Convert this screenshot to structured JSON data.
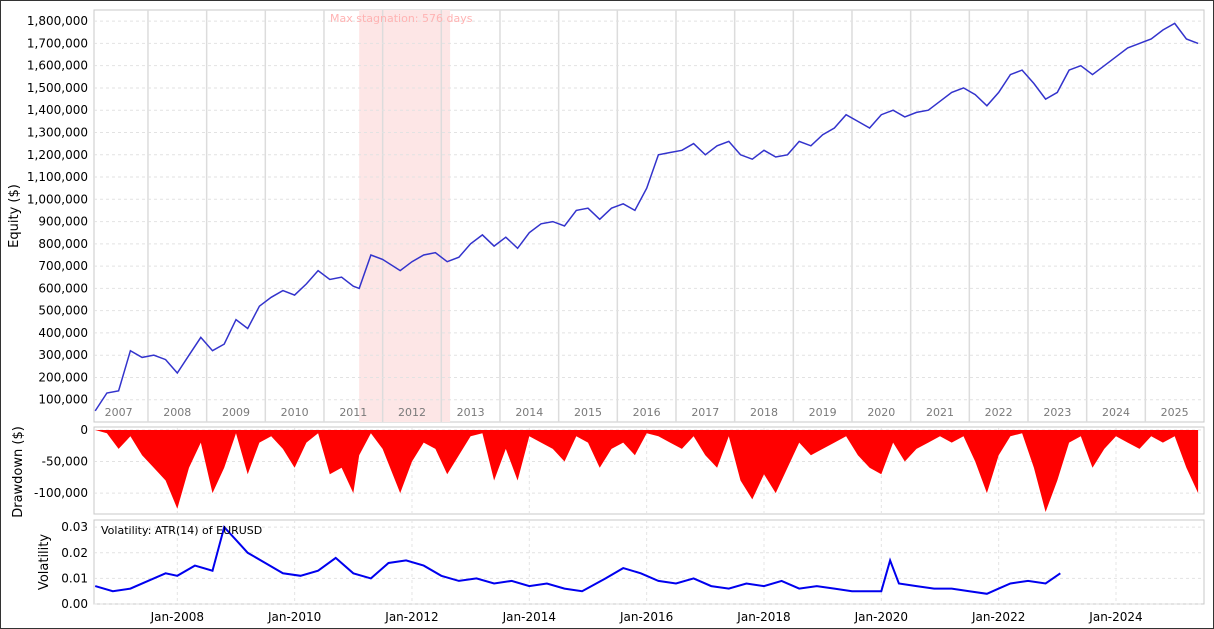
{
  "chart_data": [
    {
      "type": "line",
      "panel": "equity",
      "ylabel": "Equity ($)",
      "ylim": [
        0,
        1850000
      ],
      "yticks": [
        100000,
        200000,
        300000,
        400000,
        500000,
        600000,
        700000,
        800000,
        900000,
        1000000,
        1100000,
        1200000,
        1300000,
        1400000,
        1500000,
        1600000,
        1700000,
        1800000
      ],
      "ytick_labels": [
        "100,000",
        "200,000",
        "300,000",
        "400,000",
        "500,000",
        "600,000",
        "700,000",
        "800,000",
        "900,000",
        "1,000,000",
        "1,100,000",
        "1,200,000",
        "1,300,000",
        "1,400,000",
        "1,500,000",
        "1,600,000",
        "1,700,000",
        "1,800,000"
      ],
      "year_labels": [
        "2007",
        "2008",
        "2009",
        "2010",
        "2011",
        "2012",
        "2013",
        "2014",
        "2015",
        "2016",
        "2017",
        "2018",
        "2019",
        "2020",
        "2021",
        "2022",
        "2023",
        "2024",
        "2025"
      ],
      "annotation": "Max stagnation: 576 days",
      "stagnation_x": [
        2011.1,
        2012.65
      ],
      "grid": true,
      "color": "#3333cc",
      "x": [
        2006.6,
        2006.8,
        2007.0,
        2007.2,
        2007.4,
        2007.6,
        2007.8,
        2008.0,
        2008.2,
        2008.4,
        2008.6,
        2008.8,
        2009.0,
        2009.2,
        2009.4,
        2009.6,
        2009.8,
        2010.0,
        2010.2,
        2010.4,
        2010.6,
        2010.8,
        2011.0,
        2011.1,
        2011.3,
        2011.5,
        2011.8,
        2012.0,
        2012.2,
        2012.4,
        2012.6,
        2012.8,
        2013.0,
        2013.2,
        2013.4,
        2013.6,
        2013.8,
        2014.0,
        2014.2,
        2014.4,
        2014.6,
        2014.8,
        2015.0,
        2015.2,
        2015.4,
        2015.6,
        2015.8,
        2016.0,
        2016.2,
        2016.4,
        2016.6,
        2016.8,
        2017.0,
        2017.2,
        2017.4,
        2017.6,
        2017.8,
        2018.0,
        2018.2,
        2018.4,
        2018.6,
        2018.8,
        2019.0,
        2019.2,
        2019.4,
        2019.6,
        2019.8,
        2020.0,
        2020.2,
        2020.4,
        2020.6,
        2020.8,
        2021.0,
        2021.2,
        2021.4,
        2021.6,
        2021.8,
        2022.0,
        2022.2,
        2022.4,
        2022.6,
        2022.8,
        2023.0,
        2023.2,
        2023.4,
        2023.6,
        2023.8,
        2024.0,
        2024.2,
        2024.4,
        2024.6,
        2024.8,
        2025.0,
        2025.2,
        2025.4
      ],
      "y": [
        50000,
        130000,
        140000,
        320000,
        290000,
        300000,
        280000,
        220000,
        300000,
        380000,
        320000,
        350000,
        460000,
        420000,
        520000,
        560000,
        590000,
        570000,
        620000,
        680000,
        640000,
        650000,
        610000,
        600000,
        750000,
        730000,
        680000,
        720000,
        750000,
        760000,
        720000,
        740000,
        800000,
        840000,
        790000,
        830000,
        780000,
        850000,
        890000,
        900000,
        880000,
        950000,
        960000,
        910000,
        960000,
        980000,
        950000,
        1050000,
        1200000,
        1210000,
        1220000,
        1250000,
        1200000,
        1240000,
        1260000,
        1200000,
        1180000,
        1220000,
        1190000,
        1200000,
        1260000,
        1240000,
        1290000,
        1320000,
        1380000,
        1350000,
        1320000,
        1380000,
        1400000,
        1370000,
        1390000,
        1400000,
        1440000,
        1480000,
        1500000,
        1470000,
        1420000,
        1480000,
        1560000,
        1580000,
        1520000,
        1450000,
        1480000,
        1580000,
        1600000,
        1560000,
        1600000,
        1640000,
        1680000,
        1700000,
        1720000,
        1760000,
        1790000,
        1720000,
        1700000
      ]
    },
    {
      "type": "area",
      "panel": "drawdown",
      "ylabel": "Drawdown ($)",
      "ylim": [
        -130000,
        0
      ],
      "yticks": [
        0,
        -50000,
        -100000
      ],
      "ytick_labels": [
        "0",
        "-50,000",
        "-100,000"
      ],
      "color": "#ff0000",
      "grid": true,
      "x": [
        2006.6,
        2006.8,
        2007.0,
        2007.2,
        2007.4,
        2007.6,
        2007.8,
        2008.0,
        2008.2,
        2008.4,
        2008.6,
        2008.8,
        2009.0,
        2009.2,
        2009.4,
        2009.6,
        2009.8,
        2010.0,
        2010.2,
        2010.4,
        2010.6,
        2010.8,
        2011.0,
        2011.1,
        2011.3,
        2011.5,
        2011.8,
        2012.0,
        2012.2,
        2012.4,
        2012.6,
        2012.8,
        2013.0,
        2013.2,
        2013.4,
        2013.6,
        2013.8,
        2014.0,
        2014.2,
        2014.4,
        2014.6,
        2014.8,
        2015.0,
        2015.2,
        2015.4,
        2015.6,
        2015.8,
        2016.0,
        2016.2,
        2016.4,
        2016.6,
        2016.8,
        2017.0,
        2017.2,
        2017.4,
        2017.6,
        2017.8,
        2018.0,
        2018.2,
        2018.4,
        2018.6,
        2018.8,
        2019.0,
        2019.2,
        2019.4,
        2019.6,
        2019.8,
        2020.0,
        2020.2,
        2020.4,
        2020.6,
        2020.8,
        2021.0,
        2021.2,
        2021.4,
        2021.6,
        2021.8,
        2022.0,
        2022.2,
        2022.4,
        2022.6,
        2022.8,
        2023.0,
        2023.2,
        2023.4,
        2023.6,
        2023.8,
        2024.0,
        2024.2,
        2024.4,
        2024.6,
        2024.8,
        2025.0,
        2025.2,
        2025.4
      ],
      "y": [
        0,
        -5000,
        -30000,
        -10000,
        -40000,
        -60000,
        -80000,
        -125000,
        -60000,
        -20000,
        -100000,
        -60000,
        -5000,
        -70000,
        -20000,
        -10000,
        -30000,
        -60000,
        -20000,
        -5000,
        -70000,
        -60000,
        -100000,
        -40000,
        -5000,
        -30000,
        -100000,
        -50000,
        -20000,
        -30000,
        -70000,
        -40000,
        -10000,
        -5000,
        -80000,
        -30000,
        -80000,
        -10000,
        -20000,
        -30000,
        -50000,
        -10000,
        -20000,
        -60000,
        -30000,
        -20000,
        -40000,
        -5000,
        -10000,
        -20000,
        -30000,
        -10000,
        -40000,
        -60000,
        -10000,
        -80000,
        -110000,
        -70000,
        -100000,
        -60000,
        -20000,
        -40000,
        -30000,
        -20000,
        -10000,
        -40000,
        -60000,
        -70000,
        -20000,
        -50000,
        -30000,
        -20000,
        -10000,
        -20000,
        -10000,
        -50000,
        -100000,
        -40000,
        -10000,
        -5000,
        -60000,
        -130000,
        -80000,
        -20000,
        -10000,
        -60000,
        -30000,
        -10000,
        -20000,
        -30000,
        -10000,
        -20000,
        -10000,
        -60000,
        -100000
      ]
    },
    {
      "type": "line",
      "panel": "volatility",
      "ylabel": "Volatility",
      "legend": "Volatility: ATR(14) of EURUSD",
      "ylim": [
        0,
        0.032
      ],
      "yticks": [
        0,
        0.01,
        0.02,
        0.03
      ],
      "ytick_labels": [
        "0.00",
        "0.01",
        "0.02",
        "0.03"
      ],
      "categories": [
        "Jan-2008",
        "Jan-2010",
        "Jan-2012",
        "Jan-2014",
        "Jan-2016",
        "Jan-2018",
        "Jan-2020",
        "Jan-2022",
        "Jan-2024"
      ],
      "color": "#0000ee",
      "x": [
        2006.6,
        2006.9,
        2007.2,
        2007.5,
        2007.8,
        2008.0,
        2008.3,
        2008.6,
        2008.8,
        2009.0,
        2009.2,
        2009.5,
        2009.8,
        2010.1,
        2010.4,
        2010.7,
        2011.0,
        2011.3,
        2011.6,
        2011.9,
        2012.2,
        2012.5,
        2012.8,
        2013.1,
        2013.4,
        2013.7,
        2014.0,
        2014.3,
        2014.6,
        2014.9,
        2015.3,
        2015.6,
        2015.9,
        2016.2,
        2016.5,
        2016.8,
        2017.1,
        2017.4,
        2017.7,
        2018.0,
        2018.3,
        2018.6,
        2018.9,
        2019.2,
        2019.5,
        2019.8,
        2020.0,
        2020.15,
        2020.3,
        2020.6,
        2020.9,
        2021.2,
        2021.5,
        2021.8,
        2022.0,
        2022.2,
        2022.5,
        2022.8,
        2023.05
      ],
      "y": [
        0.007,
        0.005,
        0.006,
        0.009,
        0.012,
        0.011,
        0.015,
        0.013,
        0.03,
        0.025,
        0.02,
        0.016,
        0.012,
        0.011,
        0.013,
        0.018,
        0.012,
        0.01,
        0.016,
        0.017,
        0.015,
        0.011,
        0.009,
        0.01,
        0.008,
        0.009,
        0.007,
        0.008,
        0.006,
        0.005,
        0.01,
        0.014,
        0.012,
        0.009,
        0.008,
        0.01,
        0.007,
        0.006,
        0.008,
        0.007,
        0.009,
        0.006,
        0.007,
        0.006,
        0.005,
        0.005,
        0.005,
        0.017,
        0.008,
        0.007,
        0.006,
        0.006,
        0.005,
        0.004,
        0.006,
        0.008,
        0.009,
        0.008,
        0.012
      ]
    }
  ]
}
